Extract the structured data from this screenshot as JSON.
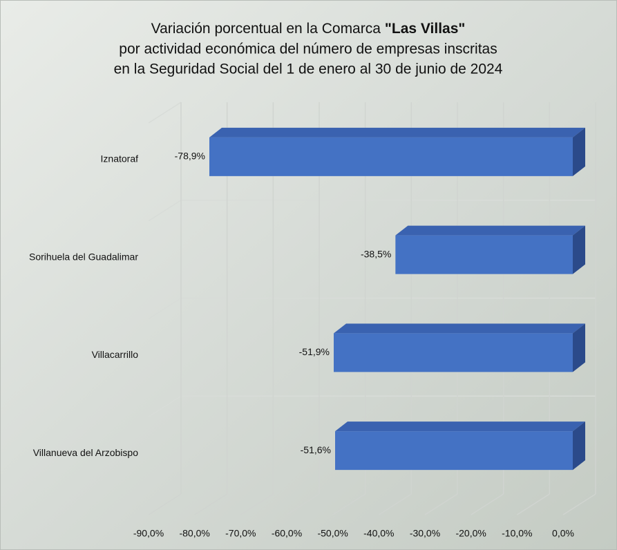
{
  "chart_data": {
    "type": "bar3d_horizontal",
    "title": [
      "Variación porcentual en la Comarca",
      "\"Las Villas\"",
      "por actividad económica del número de empresas inscritas",
      "en la Seguridad Social del 1 de enero al 30 de junio de 2024"
    ],
    "categories": [
      "Iznatoraf",
      "Sorihuela del Guadalimar",
      "Villacarrillo",
      "Villanueva del Arzobispo"
    ],
    "values": [
      -78.9,
      -38.5,
      -51.9,
      -51.6
    ],
    "value_labels": [
      "-78,9%",
      "-38,5%",
      "-51,9%",
      "-51,6%"
    ],
    "color": "#4472c4",
    "xlim": [
      -90,
      0
    ],
    "xticks": [
      {
        "value": -90,
        "label": "-90,0%"
      },
      {
        "value": -80,
        "label": "-80,0%"
      },
      {
        "value": -70,
        "label": "-70,0%"
      },
      {
        "value": -60,
        "label": "-60,0%"
      },
      {
        "value": -50,
        "label": "-50,0%"
      },
      {
        "value": -40,
        "label": "-40,0%"
      },
      {
        "value": -30,
        "label": "-30,0%"
      },
      {
        "value": -20,
        "label": "-20,0%"
      },
      {
        "value": -10,
        "label": "-10,0%"
      },
      {
        "value": 0,
        "label": "0,0%"
      }
    ],
    "grid": true
  }
}
